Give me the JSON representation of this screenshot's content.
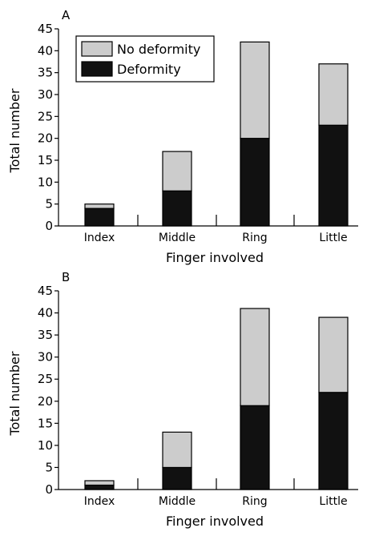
{
  "chart_data": [
    {
      "type": "bar",
      "stacked": true,
      "panel_label": "A",
      "categories": [
        "Index",
        "Middle",
        "Ring",
        "Little"
      ],
      "series": [
        {
          "name": "Deformity",
          "values": [
            4,
            8,
            20,
            23
          ],
          "color": "#111111"
        },
        {
          "name": "No deformity",
          "values": [
            1,
            9,
            22,
            14
          ],
          "color": "#cccccc"
        }
      ],
      "xlabel": "Finger involved",
      "ylabel": "Total number",
      "ylim": [
        0,
        45
      ],
      "yticks": [
        0,
        5,
        10,
        15,
        20,
        25,
        30,
        35,
        40,
        45
      ],
      "legend": {
        "placement": "top-left",
        "order": [
          "No deformity",
          "Deformity"
        ]
      },
      "grid": false
    },
    {
      "type": "bar",
      "stacked": true,
      "panel_label": "B",
      "categories": [
        "Index",
        "Middle",
        "Ring",
        "Little"
      ],
      "series": [
        {
          "name": "Deformity",
          "values": [
            1,
            5,
            19,
            22
          ],
          "color": "#111111"
        },
        {
          "name": "No deformity",
          "values": [
            1,
            8,
            22,
            17
          ],
          "color": "#cccccc"
        }
      ],
      "xlabel": "Finger involved",
      "ylabel": "Total number",
      "ylim": [
        0,
        45
      ],
      "yticks": [
        0,
        5,
        10,
        15,
        20,
        25,
        30,
        35,
        40,
        45
      ],
      "legend": null,
      "grid": false
    }
  ]
}
